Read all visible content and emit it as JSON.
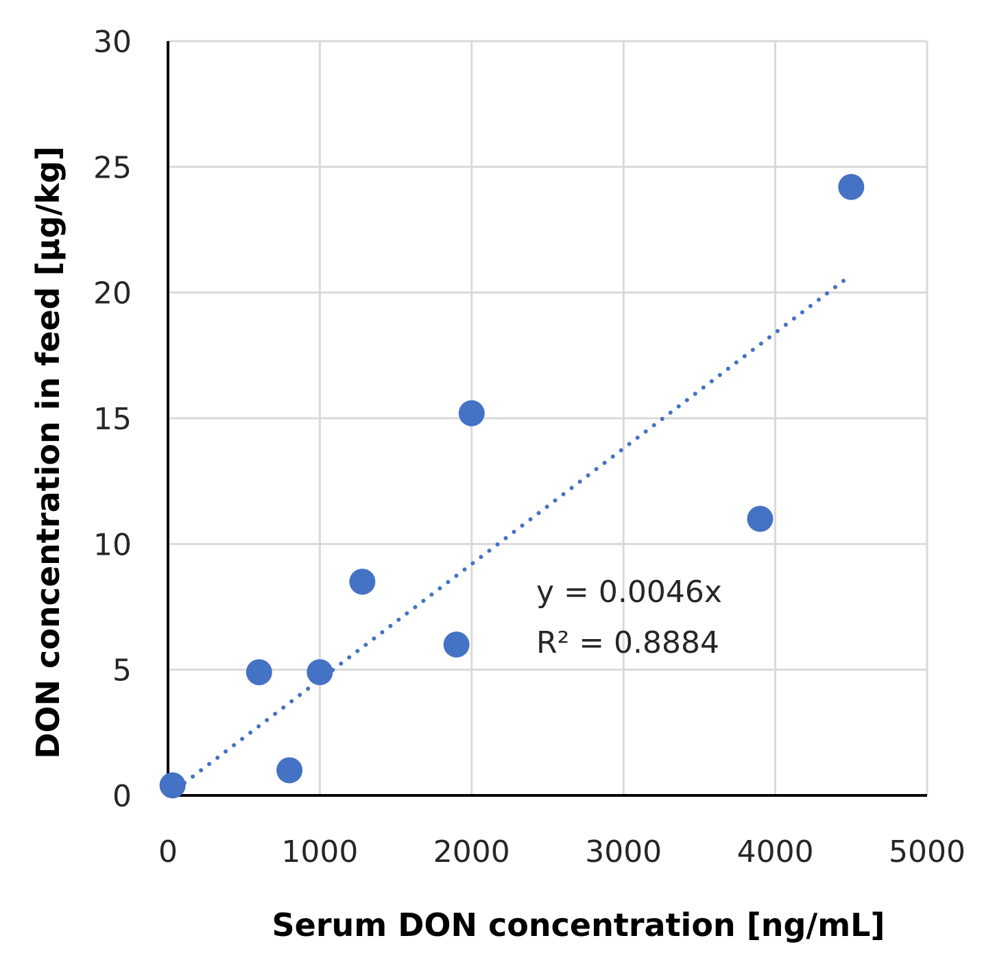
{
  "chart_data": {
    "type": "scatter",
    "title": "",
    "xlabel": "Serum DON concentration  [ng/mL]",
    "ylabel": "DON concentration in feed [µg/kg]",
    "xlim": [
      0,
      5000
    ],
    "ylim": [
      0,
      30
    ],
    "xticks": [
      0,
      1000,
      2000,
      3000,
      4000,
      5000
    ],
    "yticks": [
      0,
      5,
      10,
      15,
      20,
      25,
      30
    ],
    "grid": true,
    "series": [
      {
        "name": "DON",
        "color": "#4472C4",
        "x": [
          30,
          600,
          800,
          1000,
          1280,
          1900,
          2000,
          3900,
          4500
        ],
        "y": [
          0.4,
          4.9,
          1.0,
          4.9,
          8.5,
          6.0,
          15.2,
          11.0,
          24.2
        ]
      }
    ],
    "trendline": {
      "type": "linear",
      "slope": 0.0046,
      "intercept": 0,
      "x_range": [
        0,
        4500
      ],
      "style": "dotted",
      "color": "#4472C4"
    },
    "annotations": {
      "equation": "y = 0.0046x",
      "r_squared": "R² = 0.8884"
    }
  }
}
